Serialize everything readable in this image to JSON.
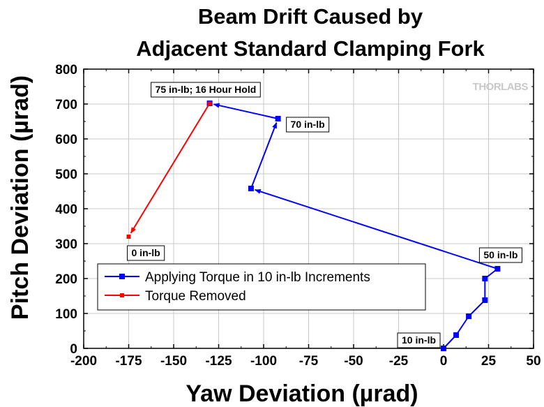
{
  "chart_data": {
    "type": "line",
    "title_lines": [
      "Beam Drift Caused by",
      "Adjacent Standard Clamping Fork"
    ],
    "xlabel": "Yaw Deviation (µrad)",
    "ylabel": "Pitch Deviation (µrad)",
    "xlim": [
      -200,
      50
    ],
    "ylim": [
      0,
      800
    ],
    "xticks": [
      -200,
      -175,
      -150,
      -125,
      -100,
      -75,
      -50,
      -25,
      0,
      25,
      50
    ],
    "yticks": [
      0,
      100,
      200,
      300,
      400,
      500,
      600,
      700,
      800
    ],
    "grid": true,
    "legend_position": "lower-left",
    "series": [
      {
        "name": "Applying Torque in 10 in-lb Increments",
        "color": "#0000ff",
        "marker": "square",
        "x": [
          0,
          7,
          14,
          23,
          23,
          30,
          -107,
          -92,
          -130
        ],
        "y": [
          0,
          38,
          92,
          138,
          200,
          228,
          458,
          658,
          702
        ]
      },
      {
        "name": "Torque Removed",
        "color": "#ff0000",
        "marker": "square",
        "x": [
          -130,
          -175
        ],
        "y": [
          702,
          320
        ]
      }
    ],
    "annotations": [
      {
        "text": "10 in-lb",
        "x": 0,
        "y": 0
      },
      {
        "text": "50 in-lb",
        "x": 30,
        "y": 228
      },
      {
        "text": "70 in-lb",
        "x": -92,
        "y": 658
      },
      {
        "text": "75 in-lb; 16 Hour Hold",
        "x": -130,
        "y": 702
      },
      {
        "text": "0 in-lb",
        "x": -175,
        "y": 320
      }
    ]
  },
  "brand_text": "THORLABS"
}
